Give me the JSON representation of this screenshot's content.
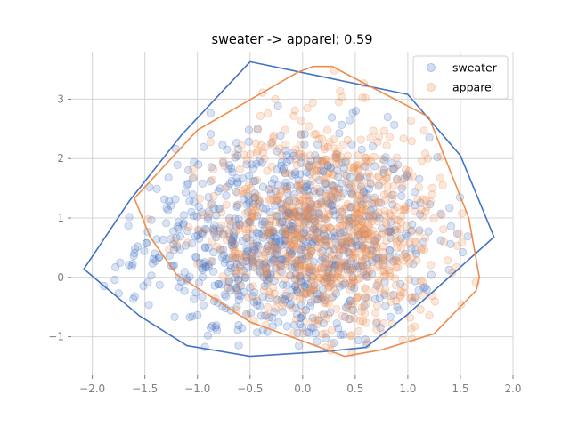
{
  "chart_data": {
    "type": "scatter",
    "title": "sweater -> apparel; 0.59",
    "xlabel": "",
    "ylabel": "",
    "xlim": [
      -2.2,
      2.0
    ],
    "ylim": [
      -1.65,
      3.8
    ],
    "xticks": [
      -2.0,
      -1.5,
      -1.0,
      -0.5,
      0.0,
      0.5,
      1.0,
      1.5,
      2.0
    ],
    "xtick_labels": [
      "−2.0",
      "−1.5",
      "−1.0",
      "−0.5",
      "0.0",
      "0.5",
      "1.0",
      "1.5",
      "2.0"
    ],
    "yticks": [
      -1,
      0,
      1,
      2,
      3
    ],
    "ytick_labels": [
      "−1",
      "0",
      "1",
      "2",
      "3"
    ],
    "grid": true,
    "legend_position": "top-right",
    "series": [
      {
        "name": "sweater",
        "color": "#4472c4",
        "point_count": 900,
        "center": [
          -0.15,
          0.6
        ],
        "spread": [
          0.7,
          0.9
        ],
        "hull": [
          [
            -2.08,
            0.14
          ],
          [
            -1.65,
            1.28
          ],
          [
            -1.15,
            2.4
          ],
          [
            -0.5,
            3.63
          ],
          [
            1.0,
            3.08
          ],
          [
            1.5,
            2.05
          ],
          [
            1.82,
            0.68
          ],
          [
            1.0,
            -0.62
          ],
          [
            0.6,
            -1.18
          ],
          [
            0.2,
            -1.25
          ],
          [
            -0.5,
            -1.33
          ],
          [
            -1.1,
            -1.15
          ],
          [
            -1.55,
            -0.65
          ]
        ]
      },
      {
        "name": "apparel",
        "color": "#ed8c4e",
        "point_count": 900,
        "center": [
          0.25,
          0.75
        ],
        "spread": [
          0.55,
          0.95
        ],
        "hull": [
          [
            -1.6,
            1.33
          ],
          [
            -1.0,
            2.48
          ],
          [
            -0.05,
            3.45
          ],
          [
            0.1,
            3.55
          ],
          [
            0.28,
            3.55
          ],
          [
            1.2,
            2.7
          ],
          [
            1.58,
            1.0
          ],
          [
            1.68,
            0.0
          ],
          [
            1.65,
            -0.22
          ],
          [
            1.25,
            -0.95
          ],
          [
            0.75,
            -1.22
          ],
          [
            0.4,
            -1.33
          ],
          [
            -0.5,
            -0.75
          ],
          [
            -1.2,
            0.05
          ],
          [
            -1.45,
            0.68
          ]
        ]
      }
    ]
  }
}
